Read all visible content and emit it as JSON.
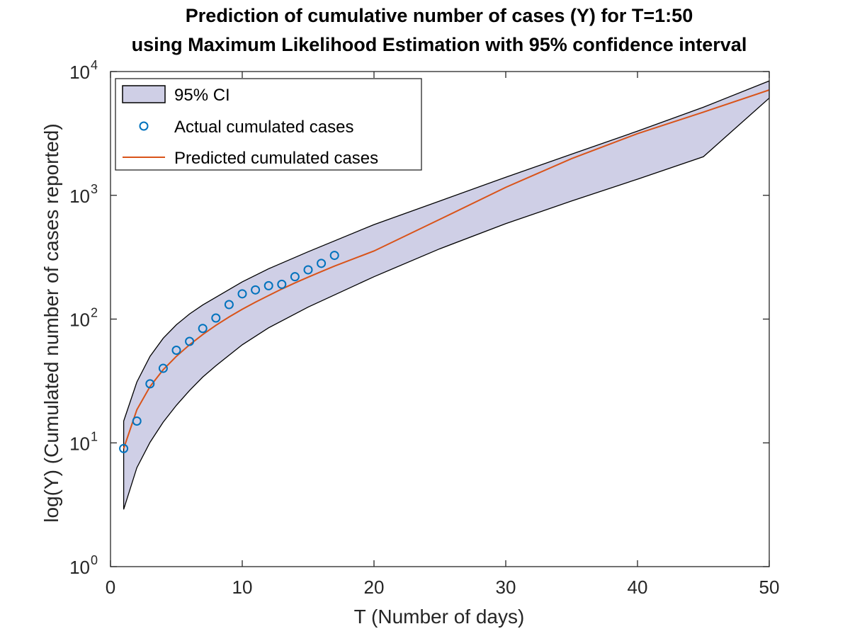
{
  "chart_data": {
    "type": "line",
    "title_lines": [
      "Prediction of cumulative number of cases (Y) for T=1:50",
      "using Maximum Likelihood Estimation with 95% confidence interval"
    ],
    "xlabel": "T (Number of days)",
    "ylabel": "log(Y) (Cumulated number of cases reported)",
    "xlim": [
      0,
      50
    ],
    "ylim": [
      1,
      10000
    ],
    "yscale": "log",
    "x_ticks": [
      "0",
      "10",
      "20",
      "30",
      "40",
      "50"
    ],
    "y_ticks": [
      {
        "base": "10",
        "exp": "0"
      },
      {
        "base": "10",
        "exp": "1"
      },
      {
        "base": "10",
        "exp": "2"
      },
      {
        "base": "10",
        "exp": "3"
      },
      {
        "base": "10",
        "exp": "4"
      }
    ],
    "grid": false,
    "legend_position": "top-left",
    "legend": [
      {
        "label": "95% CI",
        "kind": "patch"
      },
      {
        "label": "Actual cumulated cases",
        "kind": "marker"
      },
      {
        "label": "Predicted cumulated cases",
        "kind": "line"
      }
    ],
    "colors": {
      "ci_fill": "#cfcfe6",
      "ci_edge": "#000000",
      "actual": "#0072bd",
      "predicted": "#d95319"
    },
    "series": [
      {
        "name": "95% CI",
        "kind": "band",
        "x": [
          1,
          2,
          3,
          4,
          5,
          6,
          7,
          8,
          10,
          12,
          15,
          20,
          25,
          30,
          35,
          40,
          45,
          50
        ],
        "lower": [
          2.9,
          6.3,
          10.1,
          14.7,
          20.1,
          26.5,
          34,
          42,
          62,
          85,
          125,
          220,
          370,
          590,
          900,
          1350,
          2050,
          6100
        ],
        "upper": [
          15,
          31,
          50,
          70,
          90,
          110,
          130,
          150,
          200,
          255,
          350,
          580,
          900,
          1400,
          2150,
          3300,
          5150,
          8400
        ]
      },
      {
        "name": "Actual cumulated cases",
        "kind": "scatter",
        "x": [
          1,
          2,
          3,
          4,
          5,
          6,
          7,
          8,
          9,
          10,
          11,
          12,
          13,
          14,
          15,
          16,
          17
        ],
        "y": [
          9,
          15,
          30,
          40,
          56,
          66,
          84,
          102,
          131,
          160,
          172,
          186,
          191,
          220,
          250,
          282,
          327
        ]
      },
      {
        "name": "Predicted cumulated cases",
        "kind": "line",
        "x": [
          1,
          2,
          3,
          4,
          5,
          6,
          7,
          8,
          9,
          10,
          11,
          12,
          13,
          14,
          15,
          16,
          17,
          20,
          25,
          30,
          35,
          40,
          45,
          50
        ],
        "y": [
          9,
          18.5,
          28.5,
          39,
          50,
          62,
          75,
          89,
          104,
          120,
          137,
          155,
          175,
          196,
          218,
          242,
          268,
          355,
          640,
          1160,
          1980,
          3150,
          4700,
          7100
        ]
      }
    ]
  }
}
